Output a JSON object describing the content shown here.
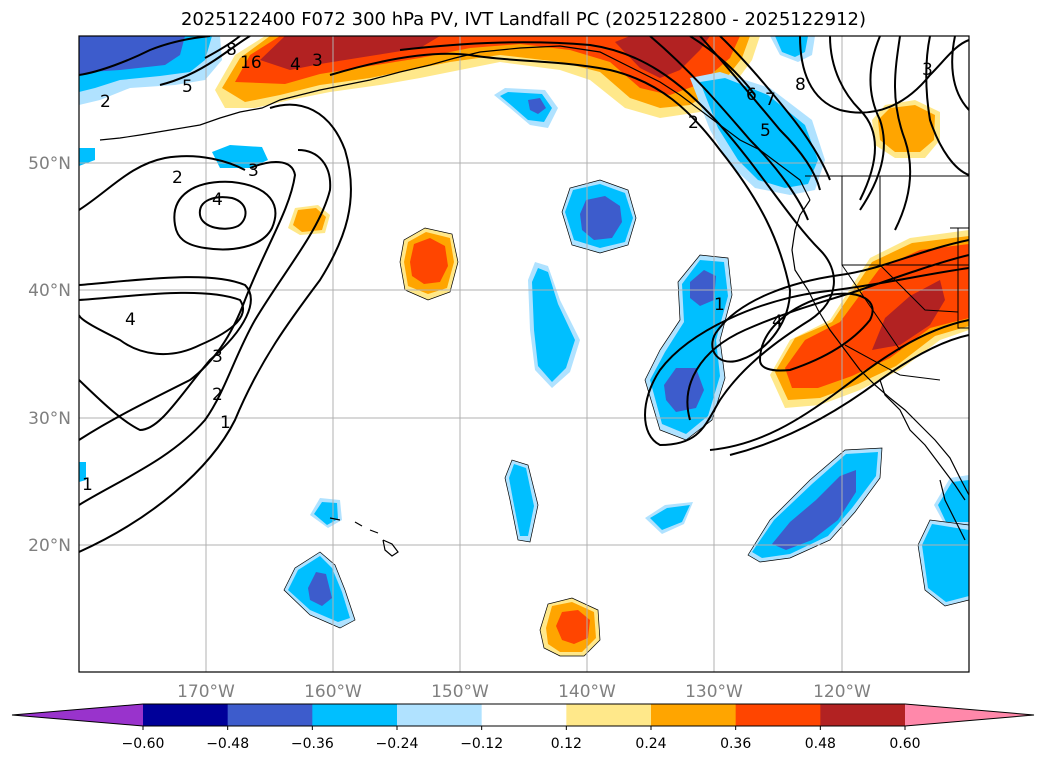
{
  "title": "2025122400 F072 300 hPa PV, IVT Landfall PC (2025122800 - 2025122912)",
  "latitudes": [
    "50°N",
    "40°N",
    "30°N",
    "20°N"
  ],
  "longitudes": [
    "170°W",
    "160°W",
    "150°W",
    "140°W",
    "130°W",
    "120°W"
  ],
  "colorbar": {
    "ticks": [
      "−0.60",
      "−0.48",
      "−0.36",
      "−0.24",
      "−0.12",
      "0.12",
      "0.24",
      "0.36",
      "0.48",
      "0.60"
    ],
    "colors": [
      "#9933cc",
      "#000099",
      "#3d5ccc",
      "#00bfff",
      "#b0e2ff",
      "#ffffff",
      "#ffe88a",
      "#ffa500",
      "#ff4500",
      "#b22222",
      "#ff88aa"
    ]
  },
  "contour_labels": [
    "8",
    "16",
    "4",
    "3",
    "5",
    "2",
    "3",
    "2",
    "4",
    "4",
    "3",
    "2",
    "1",
    "1",
    "1",
    "4",
    "6",
    "7",
    "5",
    "8",
    "3",
    "2"
  ],
  "chart_data": {
    "type": "map",
    "projection": "plate carree",
    "extent": {
      "lon": [
        -180,
        -110
      ],
      "lat": [
        10,
        60
      ]
    },
    "shaded_field": "IVT landfall PC (principal component loading)",
    "contour_field": "300 hPa PV",
    "contour_levels": [
      1,
      2,
      3,
      4,
      5,
      6,
      7,
      8,
      16
    ],
    "colorbar_levels": [
      -0.6,
      -0.48,
      -0.36,
      -0.24,
      -0.12,
      0.12,
      0.24,
      0.36,
      0.48,
      0.6
    ],
    "colorbar_extend": "both"
  }
}
